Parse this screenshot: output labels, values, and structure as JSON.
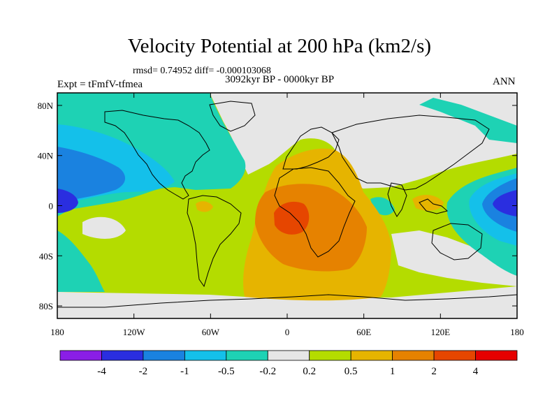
{
  "chart_data": {
    "type": "filled-contour map",
    "title": "Velocity Potential at 200 hPa (km2/s)",
    "stats_line": "rmsd= 0.74952 diff= -0.000103068",
    "period": "3092kyr BP - 0000kyr BP",
    "experiment": "Expt = tFmfV-tfmea",
    "season": "ANN",
    "x_ticks": [
      "180",
      "120W",
      "60W",
      "0",
      "60E",
      "120E",
      "180"
    ],
    "x_values": [
      -180,
      -120,
      -60,
      0,
      60,
      120,
      180
    ],
    "y_ticks": [
      "80N",
      "40N",
      "0",
      "40S",
      "80S"
    ],
    "y_values": [
      80,
      40,
      0,
      -40,
      -80
    ],
    "xlim": [
      -180,
      180
    ],
    "ylim": [
      -90,
      90
    ],
    "colorbar": {
      "labels": [
        "-4",
        "-2",
        "-1",
        "-0.5",
        "-0.2",
        "0.2",
        "0.5",
        "1",
        "2",
        "4"
      ],
      "colors": [
        "#8a1ee6",
        "#2a2ee0",
        "#1a82e0",
        "#14c0ea",
        "#1ed2b4",
        "#e6e6e6",
        "#b4dc00",
        "#e6b400",
        "#e68200",
        "#e64600",
        "#e60000"
      ]
    },
    "regions": [
      {
        "name": "background",
        "level": "0.2 to 0.5",
        "color": "#b4dc00"
      },
      {
        "name": "northern-gray",
        "level": "-0.2 to 0.2",
        "color": "#e6e6e6"
      },
      {
        "name": "pacific-teal",
        "level": "-0.5 to -0.2",
        "color": "#1ed2b4"
      },
      {
        "name": "pacific-cyan",
        "level": "-1 to -0.5",
        "color": "#14c0ea"
      },
      {
        "name": "pacific-blue",
        "level": "-2 to -1",
        "color": "#1a82e0"
      },
      {
        "name": "pacific-dark-blue",
        "level": "-4 to -2",
        "color": "#2a2ee0"
      },
      {
        "name": "africa-yellow",
        "level": "0.5 to 1",
        "color": "#e6b400"
      },
      {
        "name": "africa-orange",
        "level": "1 to 2",
        "color": "#e68200"
      },
      {
        "name": "africa-red-orange",
        "level": "2 to 4",
        "color": "#e64600"
      }
    ]
  }
}
